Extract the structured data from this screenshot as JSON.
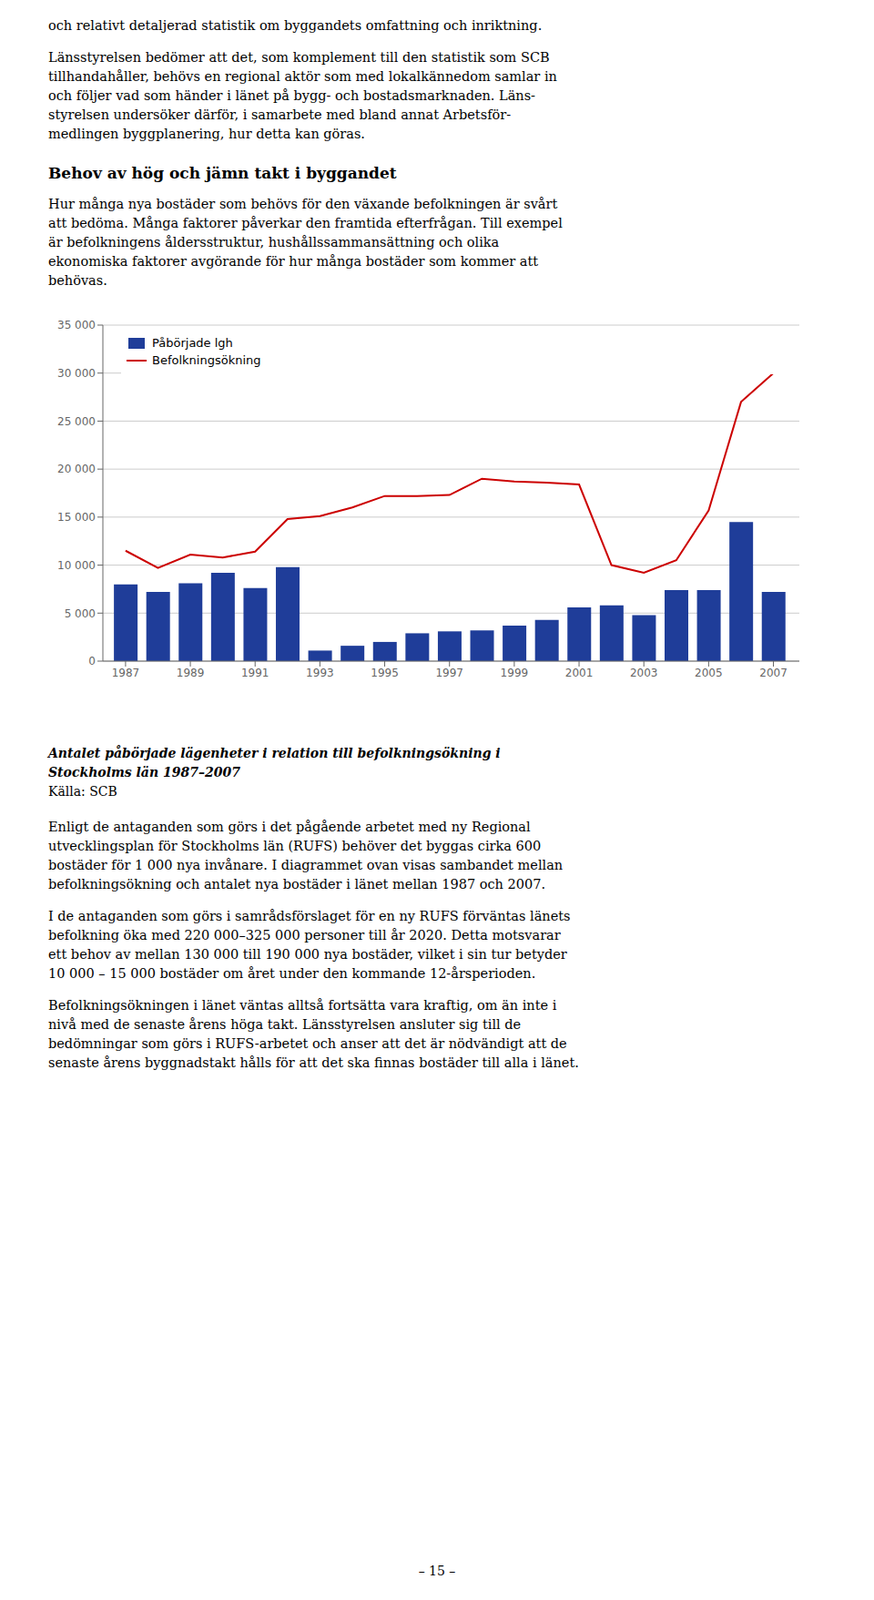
{
  "chart_data": {
    "type": "bar",
    "title": [
      "Antalet påbörjade lägenheter i relation till befolkningsökning i",
      "Stockholms län 1987–2007"
    ],
    "subtitle": "Källa: SCB",
    "x": [
      1987,
      1988,
      1989,
      1990,
      1991,
      1992,
      1993,
      1994,
      1995,
      1996,
      1997,
      1998,
      1999,
      2000,
      2001,
      2002,
      2003,
      2004,
      2005,
      2006,
      2007
    ],
    "series": [
      {
        "name": "Påbörjade lgh",
        "type": "bar",
        "color": "#1F3D99",
        "values": [
          8000,
          7200,
          8100,
          9200,
          7600,
          9800,
          1100,
          1600,
          2000,
          2900,
          3100,
          3200,
          3700,
          4300,
          5600,
          5800,
          4800,
          7400,
          7400,
          14500,
          7200
        ]
      },
      {
        "name": "Befolkningsökning",
        "type": "line",
        "color": "#CC0000",
        "values": [
          11500,
          9700,
          11100,
          10800,
          11400,
          14800,
          15100,
          16000,
          17200,
          17200,
          17300,
          19000,
          18700,
          18600,
          18400,
          10000,
          9200,
          10500,
          15700,
          27000,
          30000
        ]
      }
    ],
    "xlim": [
      1986.3,
      2007.8
    ],
    "xticks": [
      1987,
      1989,
      1991,
      1993,
      1995,
      1997,
      1999,
      2001,
      2003,
      2005,
      2007
    ],
    "ylim": [
      0,
      35000
    ],
    "yticks": [
      0,
      {
        "value": 5000,
        "label": "5 000"
      },
      {
        "value": 10000,
        "label": "10 000"
      },
      {
        "value": 15000,
        "label": "15 000"
      },
      {
        "value": 20000,
        "label": "20 000"
      },
      {
        "value": 25000,
        "label": "25 000"
      },
      {
        "value": 30000,
        "label": "30 000"
      },
      {
        "value": 35000,
        "label": "35 000"
      }
    ],
    "grid": true,
    "legend": "upper left"
  },
  "page_text": {
    "before": [
      [
        "och relativt detaljerad statistik om byggandets omfattning och inriktning."
      ],
      [
        "Länsstyrelsen bedömer att det, som komplement till den statistik som SCB",
        "tillhandahåller, behövs en regional aktör som med lokalkännedom samlar in",
        "och följer vad som händer i länet på bygg- och bostadsmarknaden. Läns-",
        "styrelsen undersöker därför, i samarbete med bland annat Arbetsför-",
        "medlingen byggplanering, hur detta kan göras."
      ]
    ],
    "heading": "Behov av hög och jämn takt i byggandet",
    "after_heading": [
      [
        "Hur många nya bostäder som behövs för den växande befolkningen är svårt",
        "att bedöma. Många faktorer påverkar den framtida efterfrågan. Till exempel",
        "är befolkningens åldersstruktur, hushållssammansättning och olika",
        "ekonomiska faktorer avgörande för hur många bostäder som kommer att",
        "behövas."
      ]
    ],
    "after_chart": [
      [
        "Enligt de antaganden som görs i det pågående arbetet med ny Regional",
        "utvecklingsplan för Stockholms län (RUFS) behöver det byggas cirka 600",
        "bostäder för 1 000 nya invånare. I diagrammet ovan visas sambandet mellan",
        "befolkningsökning och antalet nya bostäder i länet mellan 1987 och 2007."
      ],
      [
        "I de antaganden som görs i samrådsförslaget för en ny RUFS förväntas länets",
        "befolkning öka med 220 000–325 000 personer till år 2020. Detta motsvarar",
        "ett behov av mellan 130 000 till 190 000 nya bostäder, vilket i sin tur betyder",
        "10 000 – 15 000 bostäder om året under den kommande 12-årsperioden."
      ],
      [
        "Befolkningsökningen i länet väntas alltså fortsätta vara kraftig, om än inte i",
        "nivå med de senaste årens höga takt. Länsstyrelsen ansluter sig till de",
        "bedömningar som görs i RUFS-arbetet och anser att det är nödvändigt att de",
        "senaste årens byggnadstakt hålls för att det ska finnas bostäder till alla i länet."
      ]
    ],
    "page_number": "– 15 –"
  }
}
